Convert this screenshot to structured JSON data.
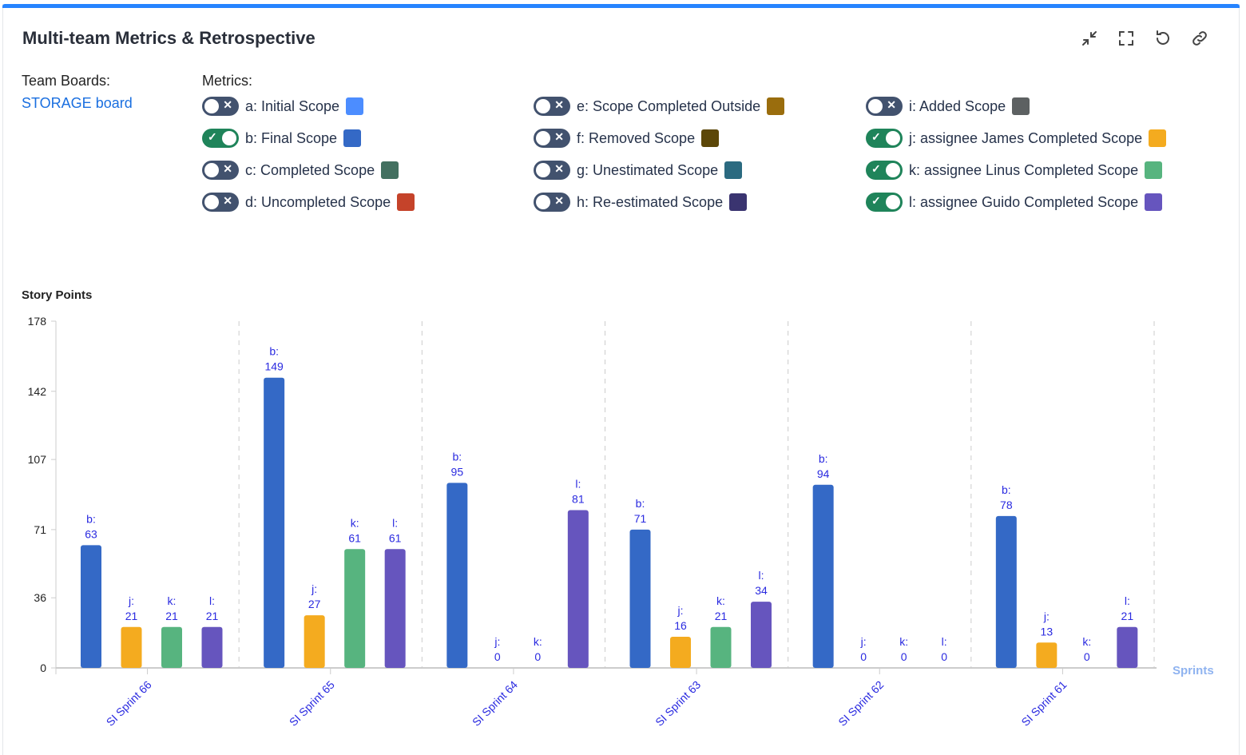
{
  "header": {
    "title": "Multi-team Metrics & Retrospective",
    "tools": [
      "collapse-icon",
      "fullscreen-icon",
      "refresh-icon",
      "link-icon"
    ]
  },
  "boards": {
    "label": "Team Boards:",
    "items": [
      "STORAGE board"
    ]
  },
  "metrics": {
    "label": "Metrics:",
    "items": [
      {
        "label": "a: Initial Scope",
        "on": false,
        "color": "#4c8dff"
      },
      {
        "label": "b: Final Scope",
        "on": true,
        "color": "#3469c6"
      },
      {
        "label": "c: Completed Scope",
        "on": false,
        "color": "#437060"
      },
      {
        "label": "d: Uncompleted Scope",
        "on": false,
        "color": "#c5432a"
      },
      {
        "label": "e: Scope Completed Outside",
        "on": false,
        "color": "#9a6d0d"
      },
      {
        "label": "f: Removed Scope",
        "on": false,
        "color": "#5c4708"
      },
      {
        "label": "g: Unestimated Scope",
        "on": false,
        "color": "#2b6a80"
      },
      {
        "label": "h: Re-estimated Scope",
        "on": false,
        "color": "#3a3470"
      },
      {
        "label": "i: Added Scope",
        "on": false,
        "color": "#5d6162"
      },
      {
        "label": "j: assignee James Completed Scope",
        "on": true,
        "color": "#f4ab1f"
      },
      {
        "label": "k: assignee Linus Completed Scope",
        "on": true,
        "color": "#57b47f"
      },
      {
        "label": "l: assignee Guido Completed Scope",
        "on": true,
        "color": "#6655be"
      }
    ]
  },
  "chart_data": {
    "type": "bar",
    "ylabel": "Story Points",
    "xlabel": "Sprints",
    "ylim": [
      0,
      178
    ],
    "yticks": [
      0,
      36,
      71,
      107,
      142,
      178
    ],
    "categories": [
      "SI Sprint 66",
      "SI Sprint 65",
      "SI Sprint 64",
      "SI Sprint 63",
      "SI Sprint 62",
      "SI Sprint 61"
    ],
    "grid": "vertical dashed separators",
    "series": [
      {
        "name": "b",
        "color": "#3469c6",
        "values": [
          63,
          149,
          95,
          71,
          94,
          78
        ]
      },
      {
        "name": "j",
        "color": "#f4ab1f",
        "values": [
          21,
          27,
          0,
          16,
          0,
          13
        ]
      },
      {
        "name": "k",
        "color": "#57b47f",
        "values": [
          21,
          61,
          0,
          21,
          0,
          0
        ]
      },
      {
        "name": "l",
        "color": "#6655be",
        "values": [
          21,
          61,
          81,
          34,
          0,
          21
        ]
      }
    ],
    "label_color": "#2a2ae0"
  }
}
